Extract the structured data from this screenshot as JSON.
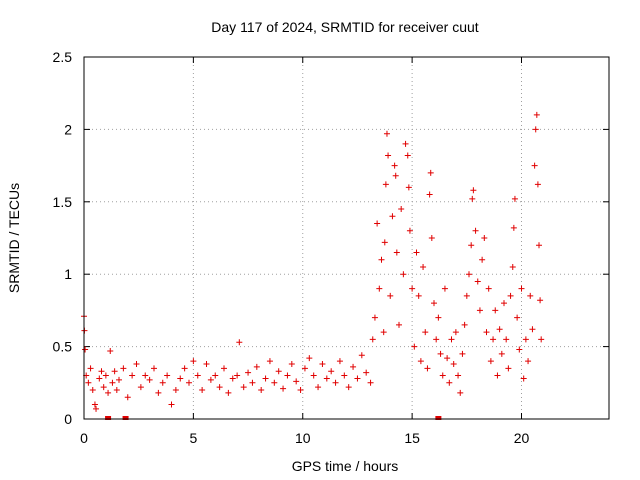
{
  "chart_data": {
    "type": "scatter",
    "title": "Day 117 of 2024, SRMTID for receiver cuut",
    "xlabel": "GPS time / hours",
    "ylabel": "SRMTID / TECUs",
    "xlim": [
      0,
      24
    ],
    "ylim": [
      0,
      2.5
    ],
    "xticks": [
      0,
      5,
      10,
      15,
      20
    ],
    "yticks": [
      0,
      0.5,
      1,
      1.5,
      2,
      2.5
    ],
    "xtick_labels": [
      "0",
      "5",
      "10",
      "15",
      "20"
    ],
    "ytick_labels": [
      "0",
      "0.5",
      "1",
      "1.5",
      "2",
      "2.5"
    ],
    "grid": true,
    "marker": "+",
    "color": "#e00000",
    "series": [
      {
        "name": "SRMTID",
        "points": [
          [
            0.0,
            0.71
          ],
          [
            0.02,
            0.61
          ],
          [
            0.05,
            0.48
          ],
          [
            0.1,
            0.3
          ],
          [
            0.2,
            0.25
          ],
          [
            0.3,
            0.35
          ],
          [
            0.4,
            0.2
          ],
          [
            0.5,
            0.1
          ],
          [
            0.55,
            0.07
          ],
          [
            0.7,
            0.28
          ],
          [
            0.8,
            0.33
          ],
          [
            0.9,
            0.22
          ],
          [
            1.0,
            0.3
          ],
          [
            1.1,
            0.18
          ],
          [
            1.2,
            0.47
          ],
          [
            1.3,
            0.25
          ],
          [
            1.4,
            0.33
          ],
          [
            1.5,
            0.2
          ],
          [
            1.6,
            0.27
          ],
          [
            1.8,
            0.35
          ],
          [
            2.0,
            0.15
          ],
          [
            2.2,
            0.3
          ],
          [
            2.4,
            0.38
          ],
          [
            2.6,
            0.22
          ],
          [
            2.8,
            0.3
          ],
          [
            3.0,
            0.27
          ],
          [
            3.2,
            0.35
          ],
          [
            3.4,
            0.18
          ],
          [
            3.6,
            0.25
          ],
          [
            3.8,
            0.3
          ],
          [
            4.0,
            0.1
          ],
          [
            4.2,
            0.2
          ],
          [
            4.4,
            0.28
          ],
          [
            4.6,
            0.35
          ],
          [
            4.8,
            0.25
          ],
          [
            5.0,
            0.4
          ],
          [
            5.2,
            0.3
          ],
          [
            5.4,
            0.2
          ],
          [
            5.6,
            0.38
          ],
          [
            5.8,
            0.27
          ],
          [
            6.0,
            0.3
          ],
          [
            6.2,
            0.22
          ],
          [
            6.4,
            0.35
          ],
          [
            6.6,
            0.18
          ],
          [
            6.8,
            0.28
          ],
          [
            7.0,
            0.3
          ],
          [
            7.1,
            0.53
          ],
          [
            7.3,
            0.22
          ],
          [
            7.5,
            0.32
          ],
          [
            7.7,
            0.25
          ],
          [
            7.9,
            0.36
          ],
          [
            8.1,
            0.2
          ],
          [
            8.3,
            0.28
          ],
          [
            8.5,
            0.4
          ],
          [
            8.7,
            0.25
          ],
          [
            8.9,
            0.33
          ],
          [
            9.1,
            0.21
          ],
          [
            9.3,
            0.3
          ],
          [
            9.5,
            0.38
          ],
          [
            9.7,
            0.26
          ],
          [
            9.9,
            0.2
          ],
          [
            10.1,
            0.35
          ],
          [
            10.3,
            0.42
          ],
          [
            10.5,
            0.3
          ],
          [
            10.7,
            0.22
          ],
          [
            10.9,
            0.38
          ],
          [
            11.1,
            0.28
          ],
          [
            11.3,
            0.33
          ],
          [
            11.5,
            0.25
          ],
          [
            11.7,
            0.4
          ],
          [
            11.9,
            0.3
          ],
          [
            12.1,
            0.22
          ],
          [
            12.3,
            0.36
          ],
          [
            12.5,
            0.28
          ],
          [
            12.7,
            0.44
          ],
          [
            12.9,
            0.32
          ],
          [
            13.1,
            0.25
          ],
          [
            13.2,
            0.55
          ],
          [
            13.3,
            0.7
          ],
          [
            13.4,
            1.35
          ],
          [
            13.5,
            0.9
          ],
          [
            13.6,
            1.1
          ],
          [
            13.7,
            0.6
          ],
          [
            13.75,
            1.22
          ],
          [
            13.8,
            1.62
          ],
          [
            13.85,
            1.97
          ],
          [
            13.9,
            1.82
          ],
          [
            14.0,
            0.85
          ],
          [
            14.1,
            1.4
          ],
          [
            14.2,
            1.75
          ],
          [
            14.25,
            1.68
          ],
          [
            14.3,
            1.15
          ],
          [
            14.4,
            0.65
          ],
          [
            14.5,
            1.45
          ],
          [
            14.6,
            1.0
          ],
          [
            14.7,
            1.9
          ],
          [
            14.8,
            1.82
          ],
          [
            14.85,
            1.6
          ],
          [
            14.9,
            1.3
          ],
          [
            15.0,
            0.9
          ],
          [
            15.1,
            0.5
          ],
          [
            15.2,
            1.15
          ],
          [
            15.3,
            0.85
          ],
          [
            15.4,
            0.4
          ],
          [
            15.5,
            1.05
          ],
          [
            15.6,
            0.6
          ],
          [
            15.7,
            0.35
          ],
          [
            15.8,
            1.55
          ],
          [
            15.85,
            1.7
          ],
          [
            15.9,
            1.25
          ],
          [
            16.0,
            0.8
          ],
          [
            16.1,
            0.55
          ],
          [
            16.2,
            0.7
          ],
          [
            16.3,
            0.45
          ],
          [
            16.4,
            0.3
          ],
          [
            16.5,
            0.9
          ],
          [
            16.6,
            0.42
          ],
          [
            16.7,
            0.25
          ],
          [
            16.8,
            0.55
          ],
          [
            16.9,
            0.38
          ],
          [
            17.0,
            0.6
          ],
          [
            17.1,
            0.3
          ],
          [
            17.2,
            0.18
          ],
          [
            17.3,
            0.45
          ],
          [
            17.4,
            0.65
          ],
          [
            17.5,
            0.85
          ],
          [
            17.6,
            1.0
          ],
          [
            17.7,
            1.2
          ],
          [
            17.75,
            1.52
          ],
          [
            17.8,
            1.58
          ],
          [
            17.9,
            1.3
          ],
          [
            18.0,
            0.95
          ],
          [
            18.1,
            0.75
          ],
          [
            18.2,
            1.1
          ],
          [
            18.3,
            1.25
          ],
          [
            18.4,
            0.6
          ],
          [
            18.5,
            0.9
          ],
          [
            18.6,
            0.4
          ],
          [
            18.7,
            0.55
          ],
          [
            18.8,
            0.75
          ],
          [
            18.9,
            0.3
          ],
          [
            19.0,
            0.62
          ],
          [
            19.1,
            0.45
          ],
          [
            19.2,
            0.8
          ],
          [
            19.3,
            0.55
          ],
          [
            19.4,
            0.35
          ],
          [
            19.5,
            0.85
          ],
          [
            19.6,
            1.05
          ],
          [
            19.65,
            1.32
          ],
          [
            19.7,
            1.52
          ],
          [
            19.8,
            0.7
          ],
          [
            19.9,
            0.48
          ],
          [
            20.0,
            0.9
          ],
          [
            20.1,
            0.28
          ],
          [
            20.2,
            0.55
          ],
          [
            20.3,
            0.4
          ],
          [
            20.4,
            0.85
          ],
          [
            20.5,
            0.62
          ],
          [
            20.6,
            1.75
          ],
          [
            20.65,
            2.0
          ],
          [
            20.7,
            2.1
          ],
          [
            20.75,
            1.62
          ],
          [
            20.8,
            1.2
          ],
          [
            20.85,
            0.82
          ],
          [
            20.9,
            0.55
          ]
        ]
      }
    ],
    "zero_markers_x": [
      1.1,
      1.9,
      16.2
    ]
  }
}
